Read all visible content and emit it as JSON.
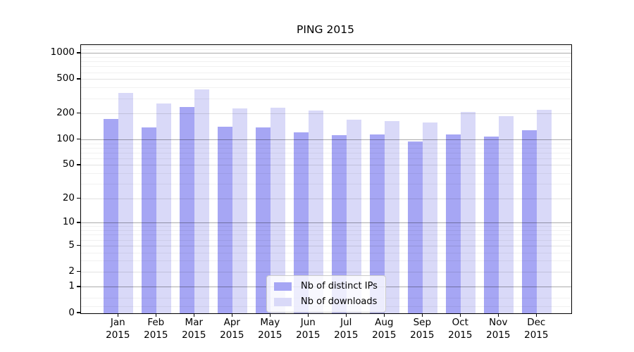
{
  "chart_data": {
    "type": "bar",
    "title": "PING 2015",
    "categories": [
      "Jan\n2015",
      "Feb\n2015",
      "Mar\n2015",
      "Apr\n2015",
      "May\n2015",
      "Jun\n2015",
      "Jul\n2015",
      "Aug\n2015",
      "Sep\n2015",
      "Oct\n2015",
      "Nov\n2015",
      "Dec\n2015"
    ],
    "series": [
      {
        "name": "Nb of distinct IPs",
        "color": "#a6a6f4",
        "values": [
          175,
          140,
          238,
          142,
          140,
          122,
          112,
          115,
          95,
          116,
          108,
          130
        ]
      },
      {
        "name": "Nb of downloads",
        "color": "#d9d9f8",
        "values": [
          351,
          262,
          382,
          231,
          234,
          217,
          170,
          166,
          160,
          209,
          188,
          221
        ]
      }
    ],
    "xlabel": "",
    "ylabel": "",
    "yscale": "symlog",
    "yticks": [
      0,
      1,
      2,
      5,
      10,
      20,
      50,
      100,
      200,
      500,
      1000
    ],
    "ylim": [
      0,
      1250
    ],
    "grid": true,
    "legend_position": "lower center"
  }
}
